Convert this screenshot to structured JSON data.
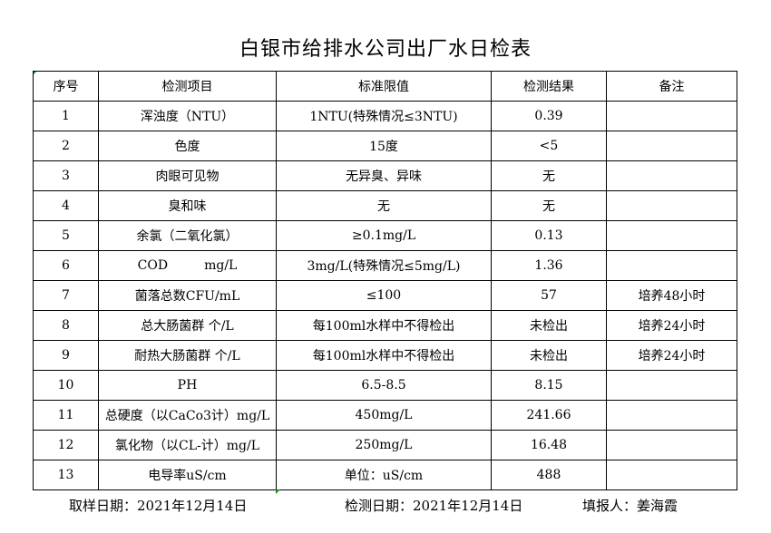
{
  "title": "白银市给排水公司出厂水日检表",
  "columns": [
    "序号",
    "检测项目",
    "标准限值",
    "检测结果",
    "备注"
  ],
  "rows": [
    [
      "1",
      "浑浊度（NTU）",
      "1NTU(特殊情况≤3NTU)",
      "0.39",
      ""
    ],
    [
      "2",
      "色度",
      "15度",
      "<5",
      ""
    ],
    [
      "3",
      "肉眼可见物",
      "无异臭、异味",
      "无",
      ""
    ],
    [
      "4",
      "臭和味",
      "无",
      "无",
      ""
    ],
    [
      "5",
      "余氯（二氧化氯）",
      "≥0.1mg/L",
      "0.13",
      ""
    ],
    [
      "6",
      "COD         mg/L",
      "3mg/L(特殊情况≤5mg/L)",
      "1.36",
      ""
    ],
    [
      "7",
      "菌落总数CFU/mL",
      "≤100",
      "57",
      "培养48小时"
    ],
    [
      "8",
      "总大肠菌群 个/L",
      "每100ml水样中不得检出",
      "未检出",
      "培养24小时"
    ],
    [
      "9",
      "耐热大肠菌群 个/L",
      "每100ml水样中不得检出",
      "未检出",
      "培养24小时"
    ],
    [
      "10",
      "PH",
      "6.5-8.5",
      "8.15",
      ""
    ],
    [
      "11",
      "总硬度（以CaCo3计）mg/L",
      "450mg/L",
      "241.66",
      ""
    ],
    [
      "12",
      "氯化物（以CL-计）mg/L",
      "250mg/L",
      "16.48",
      ""
    ],
    [
      "13",
      "电导率uS/cm",
      "单位：uS/cm",
      "488",
      ""
    ]
  ],
  "footer": {
    "sampling_date": "取样日期：2021年12月14日",
    "test_date": "检测日期：2021年12月14日",
    "filled_by": "填报人：姜海霞"
  },
  "colors": {
    "cell_marker": "#1a8a1a"
  }
}
